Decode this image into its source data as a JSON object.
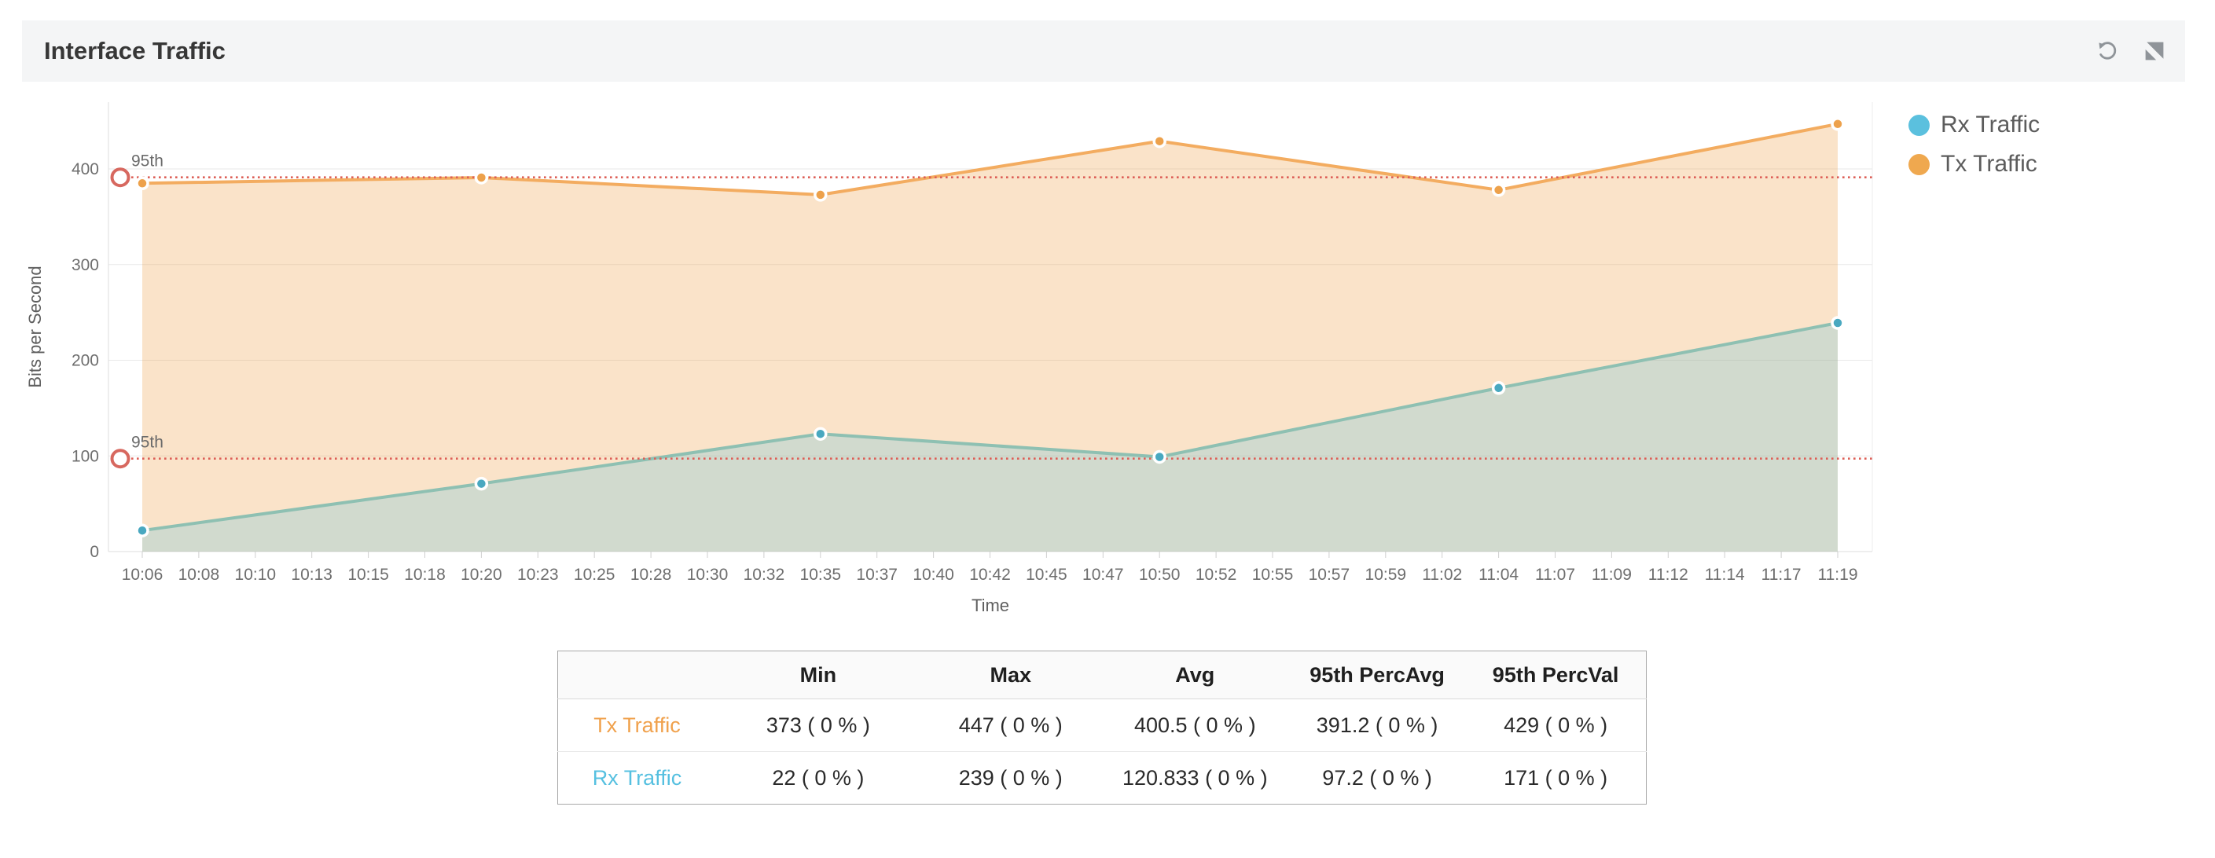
{
  "header": {
    "title": "Interface Traffic",
    "refresh_icon": "refresh-icon",
    "resize_icon": "collapse-diagonal-icon",
    "icon_color": "#8f9499"
  },
  "legend": [
    {
      "label": "Rx Traffic",
      "color": "#5bc0de"
    },
    {
      "label": "Tx Traffic",
      "color": "#efa84f"
    }
  ],
  "chart_data": {
    "type": "area",
    "title": "Interface Traffic",
    "xlabel": "Time",
    "ylabel": "Bits per Second",
    "ylim": [
      0,
      470
    ],
    "y_ticks": [
      0,
      100,
      200,
      300,
      400
    ],
    "grid": true,
    "legend_position": "right",
    "x_ticks": [
      "10:06",
      "10:08",
      "10:10",
      "10:13",
      "10:15",
      "10:18",
      "10:20",
      "10:23",
      "10:25",
      "10:28",
      "10:30",
      "10:32",
      "10:35",
      "10:37",
      "10:40",
      "10:42",
      "10:45",
      "10:47",
      "10:50",
      "10:52",
      "10:55",
      "10:57",
      "10:59",
      "11:02",
      "11:04",
      "11:07",
      "11:09",
      "11:12",
      "11:14",
      "11:17",
      "11:19"
    ],
    "point_tick_indices": [
      0,
      6,
      12,
      18,
      24,
      30
    ],
    "point_times": [
      "10:06",
      "10:20",
      "10:35",
      "10:50",
      "11:04",
      "11:19"
    ],
    "percentile_label": "95th",
    "series": [
      {
        "name": "Rx Traffic",
        "values": [
          22,
          71,
          123,
          99,
          171,
          239
        ],
        "color": "#5bc0de",
        "line_color": "#8ec0b2",
        "fill": "rgba(91,192,220,0.26)",
        "dot_color": "#49a8c0",
        "percentile_95_avg": 97.2,
        "percentile_95_val": 171
      },
      {
        "name": "Tx Traffic",
        "values": [
          385,
          391,
          373,
          429,
          378,
          447
        ],
        "color": "#efa84f",
        "line_color": "#f3ac60",
        "fill": "rgba(240,161,76,0.30)",
        "dot_color": "#eda14b",
        "percentile_95_avg": 391.2,
        "percentile_95_val": 429
      }
    ]
  },
  "table": {
    "columns": [
      "",
      "Min",
      "Max",
      "Avg",
      "95th PercAvg",
      "95th PercVal"
    ],
    "rows": [
      {
        "label": "Tx Traffic",
        "color": "#f0a14c",
        "values": [
          "373 ( 0 % )",
          "447 ( 0 % )",
          "400.5 ( 0 % )",
          "391.2 ( 0 % )",
          "429 ( 0 % )"
        ]
      },
      {
        "label": "Rx Traffic",
        "color": "#56c0e0",
        "values": [
          "22 ( 0 % )",
          "239 ( 0 % )",
          "120.833 ( 0 % )",
          "97.2 ( 0 % )",
          "171 ( 0 % )"
        ]
      }
    ]
  }
}
